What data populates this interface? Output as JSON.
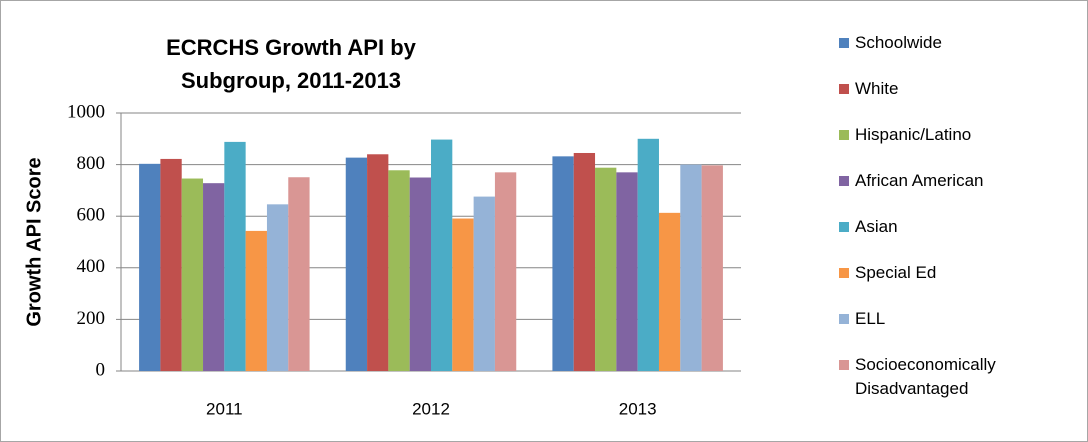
{
  "chart_data": {
    "type": "bar",
    "title": "ECRCHS Growth API by Subgroup, 2011-2013",
    "y_label": "Growth API Score",
    "categories": [
      "2011",
      "2012",
      "2013"
    ],
    "series": [
      {
        "name": "Schoolwide",
        "color": "#4f81bd",
        "values": [
          803,
          827,
          832
        ]
      },
      {
        "name": "White",
        "color": "#c0504d",
        "values": [
          822,
          840,
          845
        ]
      },
      {
        "name": "Hispanic/Latino",
        "color": "#9bbb59",
        "values": [
          746,
          778,
          788
        ]
      },
      {
        "name": "African American",
        "color": "#8064a2",
        "values": [
          728,
          750,
          770
        ]
      },
      {
        "name": "Asian",
        "color": "#4bacc6",
        "values": [
          888,
          897,
          900
        ]
      },
      {
        "name": "Special Ed",
        "color": "#f79646",
        "values": [
          543,
          591,
          613
        ]
      },
      {
        "name": "ELL",
        "color": "#95b3d7",
        "values": [
          646,
          676,
          800
        ]
      },
      {
        "name": "Socioeconomically Disadvantaged",
        "color": "#d99694",
        "values": [
          751,
          770,
          797
        ]
      }
    ],
    "ylim": [
      0,
      1000
    ],
    "yticks": [
      0,
      200,
      400,
      600,
      800,
      1000
    ],
    "grid": true,
    "legend": "right"
  }
}
